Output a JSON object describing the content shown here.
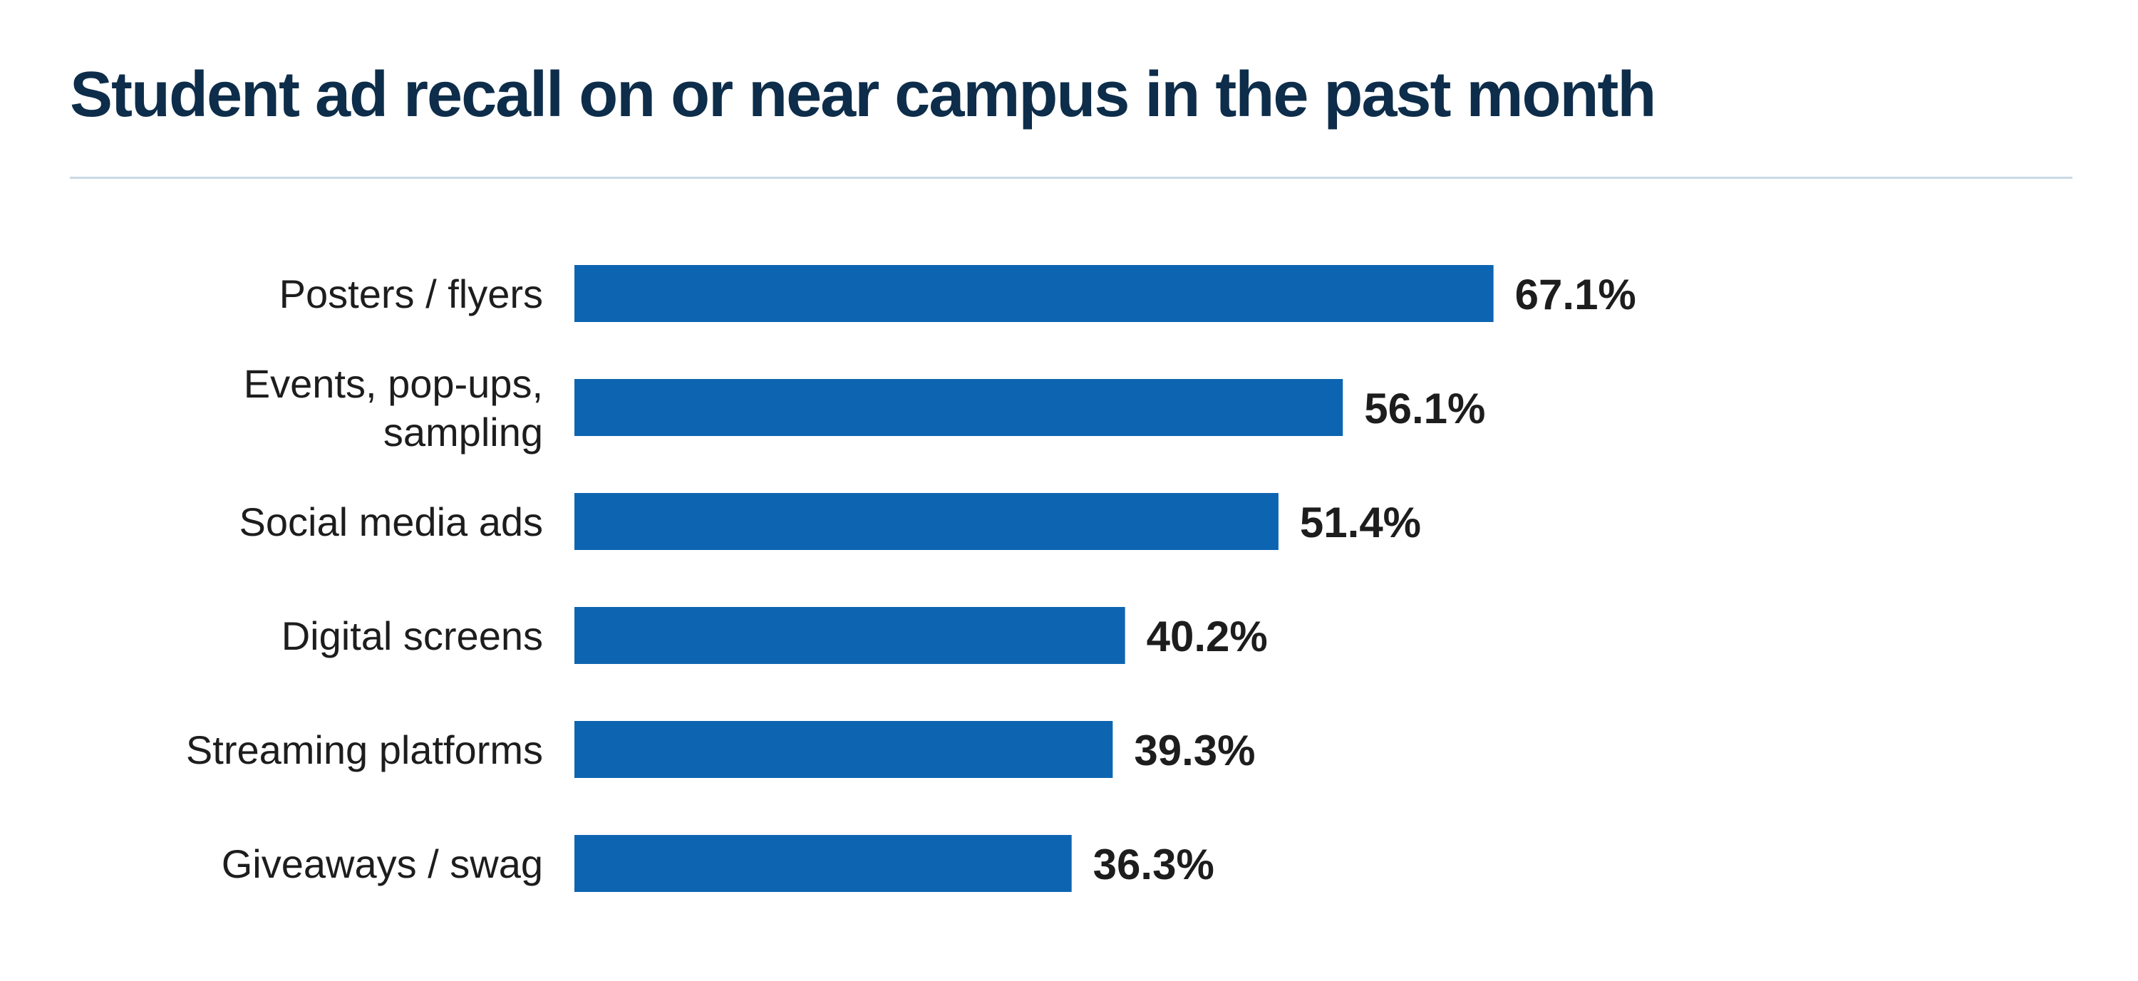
{
  "title": "Student ad recall on or near campus in the past month",
  "colors": {
    "title": "#0d2d4a",
    "bar": "#0d65b1",
    "divider": "#c9d9e6",
    "text": "#1d1d1d"
  },
  "chart_data": {
    "type": "bar",
    "orientation": "horizontal",
    "title": "Student ad recall on or near campus in the past month",
    "xlabel": "",
    "ylabel": "",
    "xlim": [
      0,
      100
    ],
    "grid": false,
    "legend": "none",
    "categories": [
      [
        "Posters / flyers"
      ],
      [
        "Events, pop-ups,",
        "sampling"
      ],
      [
        "Social media ads"
      ],
      [
        "Digital screens"
      ],
      [
        "Streaming platforms"
      ],
      [
        "Giveaways / swag"
      ]
    ],
    "values": [
      67.1,
      56.1,
      51.4,
      40.2,
      39.3,
      36.3
    ],
    "value_labels": [
      "67.1%",
      "56.1%",
      "51.4%",
      "40.2%",
      "39.3%",
      "36.3%"
    ]
  }
}
